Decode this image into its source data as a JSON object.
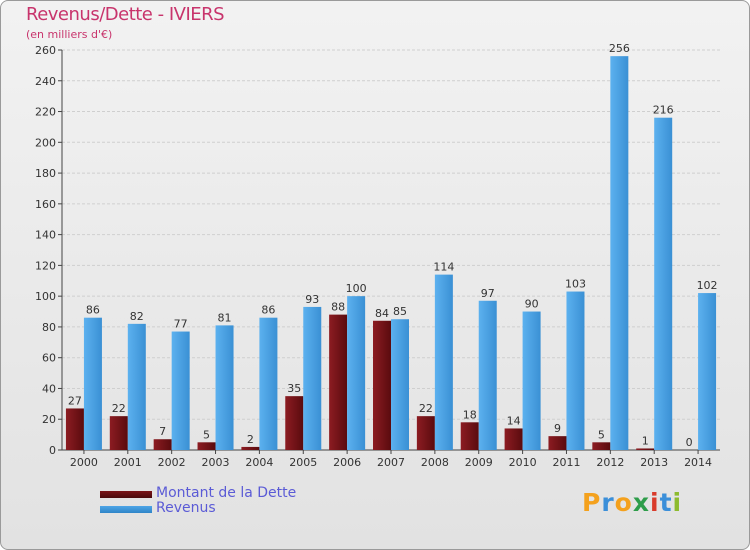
{
  "title": "Revenus/Dette - IVIERS",
  "subtitle": "(en milliers d'€)",
  "chart_data": {
    "type": "bar",
    "categories": [
      "2000",
      "2001",
      "2002",
      "2003",
      "2004",
      "2005",
      "2006",
      "2007",
      "2008",
      "2009",
      "2010",
      "2011",
      "2012",
      "2013",
      "2014"
    ],
    "series": [
      {
        "name": "Montant de la Dette",
        "color": "#7a1418",
        "values": [
          27,
          22,
          7,
          5,
          2,
          35,
          88,
          84,
          22,
          18,
          14,
          9,
          5,
          1,
          0
        ]
      },
      {
        "name": "Revenus",
        "color": "#4ea5e6",
        "values": [
          86,
          82,
          77,
          81,
          86,
          93,
          100,
          85,
          114,
          97,
          90,
          103,
          256,
          216,
          102
        ]
      }
    ],
    "ylim": [
      0,
      260
    ],
    "yticks": [
      0,
      20,
      40,
      60,
      80,
      100,
      120,
      140,
      160,
      180,
      200,
      220,
      240,
      260
    ],
    "grid": true,
    "legend_position": "bottom-left"
  },
  "legend": {
    "debt_label": "Montant de la Dette",
    "revenue_label": "Revenus",
    "debt_color": "#7a1418",
    "revenue_color": "#4ea5e6",
    "label_color": "#5b5bd6"
  },
  "logo": {
    "letters": [
      "P",
      "r",
      "o",
      "x",
      "i",
      "t",
      "i"
    ],
    "colors": [
      "#f4a11d",
      "#3b8fd9",
      "#f4a11d",
      "#2e9d4a",
      "#d93b2b",
      "#3b8fd9",
      "#8dbb2e"
    ]
  }
}
